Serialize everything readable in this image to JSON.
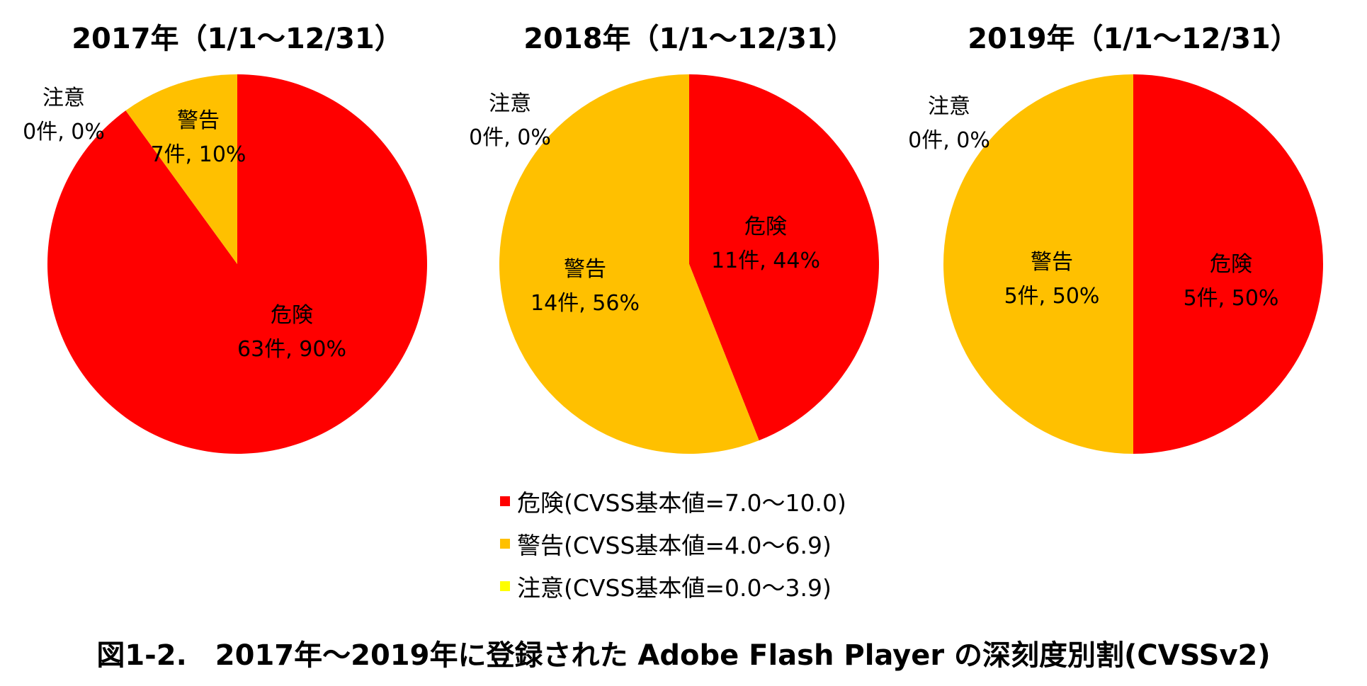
{
  "chart_data": [
    {
      "type": "pie",
      "title": "2017年（1/1〜12/31）",
      "slices": [
        {
          "category": "danger",
          "name": "危険",
          "count_label": "63件, 90%",
          "count": 63,
          "percent": 90
        },
        {
          "category": "caution",
          "name": "注意",
          "count_label": "0件, 0%",
          "count": 0,
          "percent": 0
        },
        {
          "category": "warning",
          "name": "警告",
          "count_label": "7件, 10%",
          "count": 7,
          "percent": 10
        }
      ]
    },
    {
      "type": "pie",
      "title": "2018年（1/1〜12/31）",
      "slices": [
        {
          "category": "danger",
          "name": "危険",
          "count_label": "11件, 44%",
          "count": 11,
          "percent": 44
        },
        {
          "category": "caution",
          "name": "注意",
          "count_label": "0件, 0%",
          "count": 0,
          "percent": 0
        },
        {
          "category": "warning",
          "name": "警告",
          "count_label": "14件, 56%",
          "count": 14,
          "percent": 56
        }
      ]
    },
    {
      "type": "pie",
      "title": "2019年（1/1〜12/31）",
      "slices": [
        {
          "category": "danger",
          "name": "危険",
          "count_label": "5件, 50%",
          "count": 5,
          "percent": 50
        },
        {
          "category": "caution",
          "name": "注意",
          "count_label": "0件, 0%",
          "count": 0,
          "percent": 0
        },
        {
          "category": "warning",
          "name": "警告",
          "count_label": "5件, 50%",
          "count": 5,
          "percent": 50
        }
      ]
    }
  ],
  "legend": [
    {
      "category": "danger",
      "label": "危険(CVSS基本値=7.0〜10.0)",
      "color": "#ff0000"
    },
    {
      "category": "warning",
      "label": "警告(CVSS基本値=4.0〜6.9)",
      "color": "#ffc000"
    },
    {
      "category": "caution",
      "label": "注意(CVSS基本値=0.0〜3.9)",
      "color": "#ffff00"
    }
  ],
  "caption": "図1-2.　2017年〜2019年に登録された Adobe Flash Player の深刻度別割(CVSSv2)"
}
